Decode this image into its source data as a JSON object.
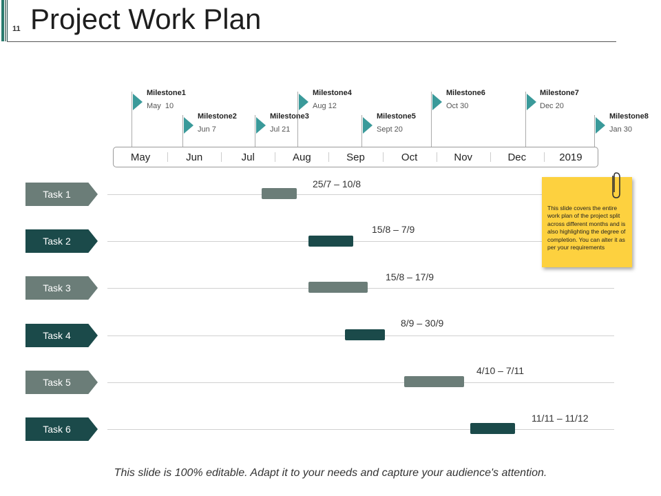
{
  "slide": {
    "number": "11",
    "title": "Project Work Plan",
    "footer": "This slide is 100% editable. Adapt it to your needs and capture your audience's attention."
  },
  "colors": {
    "dark": "#1b4a4a",
    "gray": "#6b7d78",
    "flag": "#3a9a9a",
    "note": "#fdd13f",
    "accent_bar": "#2a7a6e"
  },
  "milestones": [
    {
      "name": "Milestone1",
      "date": "May  10"
    },
    {
      "name": "Milestone2",
      "date": "Jun 7"
    },
    {
      "name": "Milestone3",
      "date": "Jul 21"
    },
    {
      "name": "Milestone4",
      "date": "Aug 12"
    },
    {
      "name": "Milestone5",
      "date": "Sept 20"
    },
    {
      "name": "Milestone6",
      "date": "Oct 30"
    },
    {
      "name": "Milestone7",
      "date": "Dec 20"
    },
    {
      "name": "Milestone8",
      "date": "Jan 30"
    }
  ],
  "months": [
    "May",
    "Jun",
    "Jul",
    "Aug",
    "Sep",
    "Oct",
    "Nov",
    "Dec",
    "2019"
  ],
  "tasks": [
    {
      "label": "Task 1",
      "range": "25/7 – 10/8"
    },
    {
      "label": "Task 2",
      "range": "15/8 – 7/9"
    },
    {
      "label": "Task 3",
      "range": "15/8 – 17/9"
    },
    {
      "label": "Task 4",
      "range": "8/9 – 30/9"
    },
    {
      "label": "Task 5",
      "range": "4/10 – 7/11"
    },
    {
      "label": "Task 6",
      "range": "11/11 – 11/12"
    }
  ],
  "note": {
    "text": "This slide covers the entire work plan of the project split across different months and is also highlighting the degree of completion. You can alter it as per your requirements"
  },
  "icons": {
    "clip": "paperclip-icon",
    "flag": "triangle-flag-icon"
  }
}
